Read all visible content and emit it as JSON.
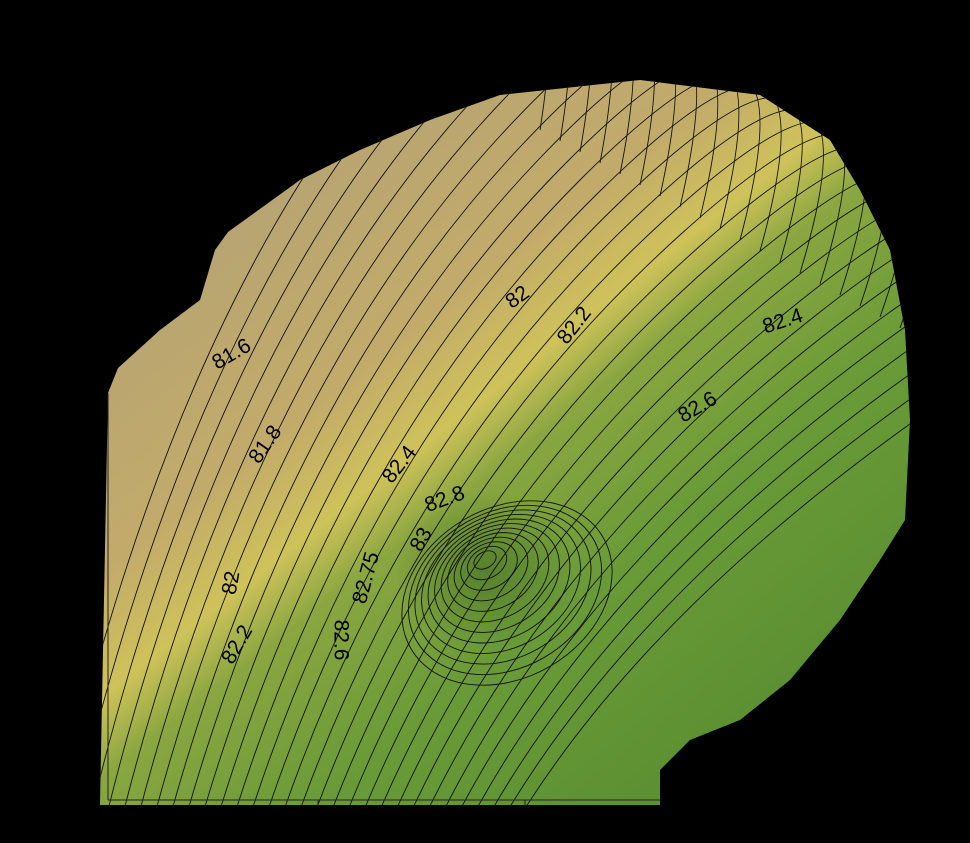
{
  "map": {
    "contour_labels": [
      {
        "label": "81.6"
      },
      {
        "label": "81.8"
      },
      {
        "label": "82"
      },
      {
        "label": "82.2"
      },
      {
        "label": "82.4"
      },
      {
        "label": "82.4"
      },
      {
        "label": "82.6"
      },
      {
        "label": "82.8"
      },
      {
        "label": "83"
      },
      {
        "label": "82.75"
      },
      {
        "label": "82.6"
      },
      {
        "label": "82"
      },
      {
        "label": "82.2"
      }
    ]
  }
}
